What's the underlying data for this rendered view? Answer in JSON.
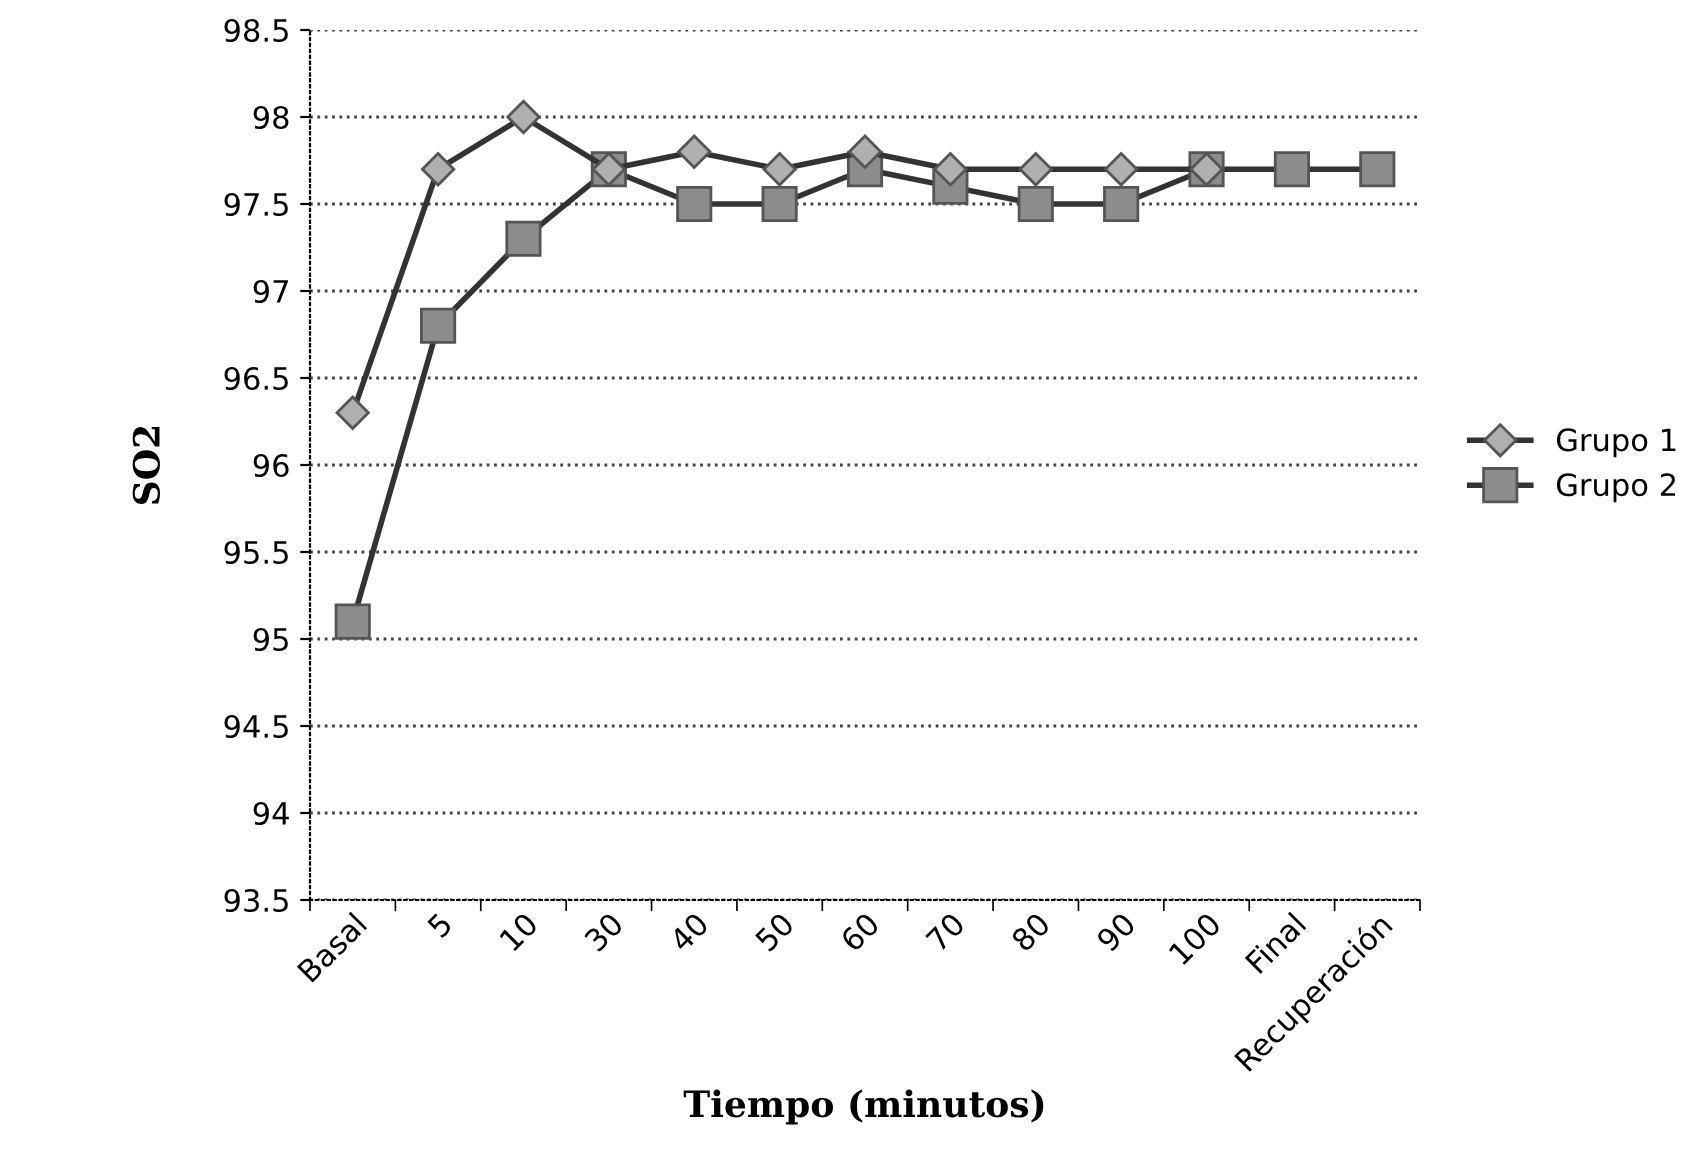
{
  "chart_data": {
    "type": "line",
    "xlabel": "Tiempo (minutos)",
    "ylabel": "SO2",
    "categories": [
      "Basal",
      "5",
      "10",
      "30",
      "40",
      "50",
      "60",
      "70",
      "80",
      "90",
      "100",
      "Final",
      "Recuperación"
    ],
    "series": [
      {
        "name": "Grupo 1",
        "color": "#b0b0b0",
        "marker": "diamond",
        "values": [
          96.3,
          97.7,
          98.0,
          97.7,
          97.8,
          97.7,
          97.8,
          97.7,
          97.7,
          97.7,
          97.7,
          null,
          null
        ]
      },
      {
        "name": "Grupo 2",
        "color": "#8c8c8c",
        "marker": "square",
        "values": [
          95.1,
          96.8,
          97.3,
          97.7,
          97.5,
          97.5,
          97.7,
          97.6,
          97.5,
          97.5,
          97.7,
          97.7,
          97.7
        ]
      }
    ],
    "ylim": [
      93.5,
      98.5
    ],
    "yticks": [
      93.5,
      94,
      94.5,
      95,
      95.5,
      96,
      96.5,
      97,
      97.5,
      98,
      98.5
    ],
    "grid": "y",
    "legend": "right"
  }
}
